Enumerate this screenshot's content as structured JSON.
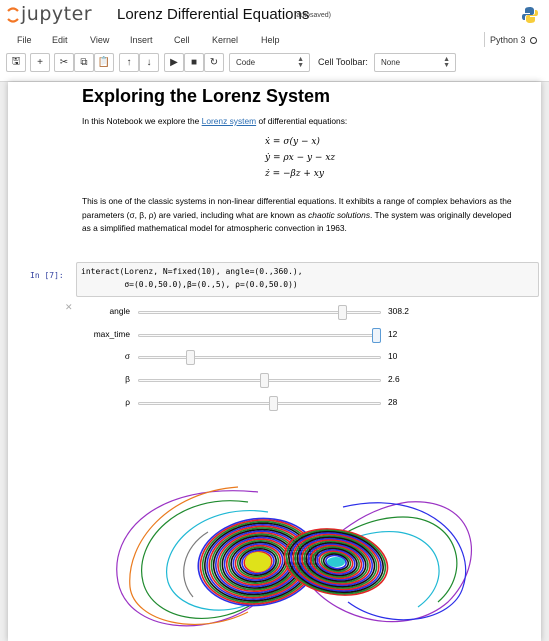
{
  "app": {
    "logo_text": "jupyter",
    "notebook_title": "Lorenz Differential Equations",
    "autosave_status": "(autosaved)",
    "kernel_name": "Python 3"
  },
  "menu": [
    "File",
    "Edit",
    "View",
    "Insert",
    "Cell",
    "Kernel",
    "Help"
  ],
  "toolbar": {
    "buttons": [
      {
        "name": "save-icon",
        "glyph": "🖫"
      },
      {
        "name": "plus-icon",
        "glyph": "+"
      },
      {
        "name": "cut-icon",
        "glyph": "✂"
      },
      {
        "name": "copy-icon",
        "glyph": "⧉"
      },
      {
        "name": "paste-icon",
        "glyph": "📋"
      },
      {
        "name": "arrow-up-icon",
        "glyph": "↑"
      },
      {
        "name": "arrow-down-icon",
        "glyph": "↓"
      },
      {
        "name": "run-icon",
        "glyph": "▶"
      },
      {
        "name": "stop-icon",
        "glyph": "■"
      },
      {
        "name": "restart-icon",
        "glyph": "↻"
      }
    ],
    "cell_type": "Code",
    "cell_toolbar_label": "Cell Toolbar:",
    "cell_toolbar_value": "None"
  },
  "markdown": {
    "heading": "Exploring the Lorenz System",
    "intro_before": "In this Notebook we explore the ",
    "intro_link": "Lorenz system",
    "intro_after": " of differential equations:",
    "equations": [
      "ẋ = σ(y − x)",
      "ẏ = ρx − y − xz",
      "ż = −βz + xy"
    ],
    "para_1": "This is one of the classic systems in non-linear differential equations. It exhibits a range of complex behaviors as the parameters (σ, β, ρ) are varied, including what are known as ",
    "para_italic": "chaotic solutions",
    "para_2": ". The system was originally developed as a simplified mathematical model for atmospheric convection in 1963."
  },
  "code_cell": {
    "prompt": "In [7]:",
    "line_1": "interact(Lorenz, N=fixed(10), angle=(0.,360.),",
    "line_2": "         σ=(0.0,50.0),β=(0.,5), ρ=(0.0,50.0))"
  },
  "widgets": [
    {
      "label": "angle",
      "value": "308.2",
      "fraction": 0.856
    },
    {
      "label": "max_time",
      "value": "12",
      "fraction": 1.0
    },
    {
      "label": "σ",
      "value": "10",
      "fraction": 0.2
    },
    {
      "label": "β",
      "value": "2.6",
      "fraction": 0.52
    },
    {
      "label": "ρ",
      "value": "28",
      "fraction": 0.56
    }
  ],
  "plot": {
    "lobe_colors": [
      "#2b2ee8",
      "#e32323",
      "#1f8a2e",
      "#111111",
      "#d4c91a",
      "#9a32c4",
      "#1fb8d4",
      "#ea7a1d",
      "#7b7b7b"
    ],
    "left_core_color": "#dfe21a",
    "right_core_color": "#2ccad3"
  }
}
